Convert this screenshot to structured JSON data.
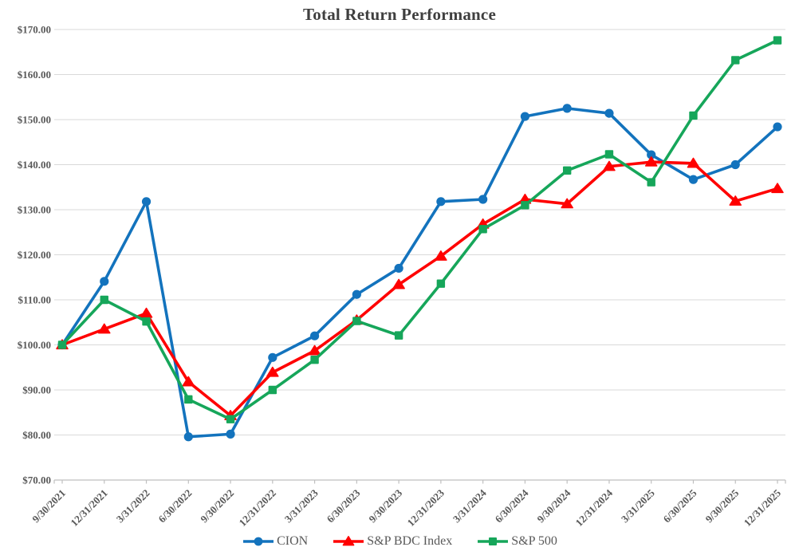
{
  "page_title": "Total Return Performance chart",
  "chart_data": {
    "type": "line",
    "title": "Total Return Performance",
    "categories": [
      "9/30/2021",
      "12/31/2021",
      "3/31/2022",
      "6/30/2022",
      "9/30/2022",
      "12/31/2022",
      "3/31/2023",
      "6/30/2023",
      "9/30/2023",
      "12/31/2023",
      "3/31/2024",
      "6/30/2024",
      "9/30/2024",
      "12/31/2024",
      "3/31/2025",
      "6/30/2025",
      "9/30/2025",
      "12/31/2025"
    ],
    "series": [
      {
        "name": "CION",
        "color": "#1373BD",
        "marker": "circle",
        "values": [
          100.0,
          114.1,
          131.8,
          79.6,
          80.2,
          97.2,
          102.0,
          111.2,
          117.0,
          131.8,
          132.3,
          150.7,
          152.5,
          151.4,
          142.2,
          136.7,
          140.0,
          148.4
        ]
      },
      {
        "name": "S&P BDC Index",
        "color": "#FF0000",
        "marker": "triangle",
        "values": [
          100.0,
          103.5,
          107.0,
          91.8,
          84.3,
          93.9,
          98.7,
          105.5,
          113.4,
          119.7,
          126.8,
          132.3,
          131.3,
          139.6,
          140.6,
          140.3,
          131.9,
          134.7
        ]
      },
      {
        "name": "S&P 500",
        "color": "#16A65A",
        "marker": "square",
        "values": [
          100.0,
          110.0,
          105.2,
          87.9,
          83.5,
          90.0,
          96.7,
          105.3,
          102.1,
          113.6,
          125.7,
          131.0,
          138.7,
          142.3,
          136.1,
          150.9,
          163.2,
          167.6
        ]
      }
    ],
    "ylim": [
      70,
      170
    ],
    "ytick_step": 10,
    "ytick_labels": [
      "$70.00",
      "$80.00",
      "$90.00",
      "$100.00",
      "$110.00",
      "$120.00",
      "$130.00",
      "$140.00",
      "$150.00",
      "$160.00",
      "$170.00"
    ],
    "xlabel": "",
    "ylabel": "",
    "grid": "horizontal",
    "legend_position": "bottom"
  },
  "style": {
    "grid_color": "#D9D9D9",
    "axis_color": "#BFBFBF",
    "label_color": "#595959",
    "title_color": "#3F3F3F"
  }
}
